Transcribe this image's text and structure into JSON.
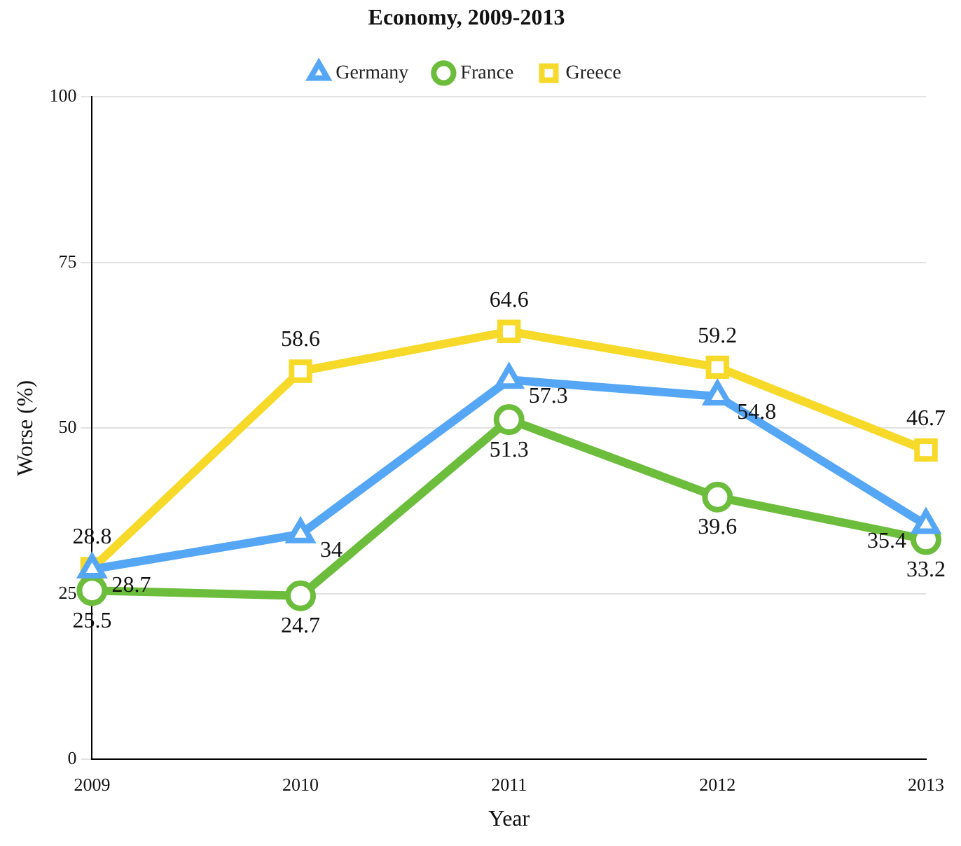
{
  "chart_data": {
    "type": "line",
    "title": "Economy, 2009-2013",
    "xlabel": "Year",
    "ylabel": "Worse (%)",
    "categories": [
      "2009",
      "2010",
      "2011",
      "2012",
      "2013"
    ],
    "series": [
      {
        "name": "Germany",
        "color": "#55a6f5",
        "marker": "triangle",
        "values": [
          28.7,
          34,
          57.3,
          54.8,
          35.4
        ]
      },
      {
        "name": "France",
        "color": "#6cbd3c",
        "marker": "circle",
        "values": [
          25.5,
          24.7,
          51.3,
          39.6,
          33.2
        ]
      },
      {
        "name": "Greece",
        "color": "#f7d92a",
        "marker": "square",
        "values": [
          28.8,
          58.6,
          64.6,
          59.2,
          46.7
        ]
      }
    ],
    "ylim": [
      0,
      100
    ],
    "yticks": [
      0,
      25,
      50,
      75,
      100
    ],
    "grid": "y",
    "legend": "top",
    "data_labels": true
  }
}
